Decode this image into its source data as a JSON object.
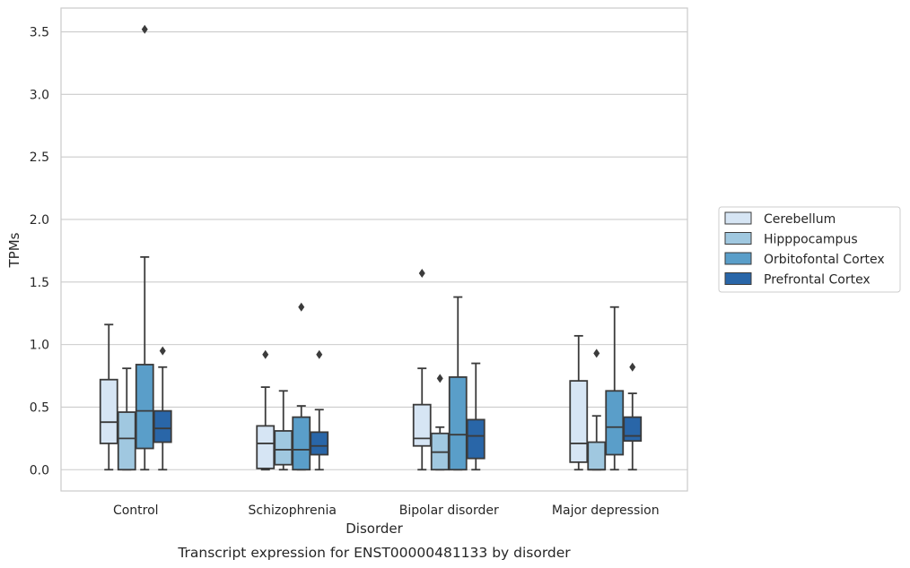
{
  "chart_data": {
    "type": "box",
    "title": "",
    "caption": "Transcript expression for ENST00000481133 by disorder",
    "xlabel": "Disorder",
    "ylabel": "TPMs",
    "ylim": [
      -0.17,
      3.69
    ],
    "yticks": [
      0.0,
      0.5,
      1.0,
      1.5,
      2.0,
      2.5,
      3.0,
      3.5
    ],
    "ytick_labels": [
      "0.0",
      "0.5",
      "1.0",
      "1.5",
      "2.0",
      "2.5",
      "3.0",
      "3.5"
    ],
    "grid": "horizontal",
    "legend_position": "right",
    "categories": [
      "Control",
      "Schizophrenia",
      "Bipolar disorder",
      "Major depression"
    ],
    "series": [
      {
        "name": "Cerebellum",
        "color": "#d6e5f4",
        "boxes": [
          {
            "whisker_low": 0.0,
            "q1": 0.21,
            "median": 0.38,
            "q3": 0.72,
            "whisker_high": 1.16,
            "outliers": []
          },
          {
            "whisker_low": 0.0,
            "q1": 0.01,
            "median": 0.21,
            "q3": 0.35,
            "whisker_high": 0.66,
            "outliers": [
              0.92
            ]
          },
          {
            "whisker_low": 0.0,
            "q1": 0.19,
            "median": 0.25,
            "q3": 0.52,
            "whisker_high": 0.81,
            "outliers": [
              1.57
            ]
          },
          {
            "whisker_low": 0.0,
            "q1": 0.06,
            "median": 0.21,
            "q3": 0.71,
            "whisker_high": 1.07,
            "outliers": []
          }
        ]
      },
      {
        "name": "Hipppocampus",
        "color": "#a0c8e0",
        "boxes": [
          {
            "whisker_low": 0.0,
            "q1": 0.0,
            "median": 0.25,
            "q3": 0.46,
            "whisker_high": 0.81,
            "outliers": []
          },
          {
            "whisker_low": 0.0,
            "q1": 0.04,
            "median": 0.16,
            "q3": 0.31,
            "whisker_high": 0.63,
            "outliers": []
          },
          {
            "whisker_low": 0.0,
            "q1": 0.0,
            "median": 0.14,
            "q3": 0.29,
            "whisker_high": 0.34,
            "outliers": [
              0.73
            ]
          },
          {
            "whisker_low": 0.0,
            "q1": 0.0,
            "median": 0.0,
            "q3": 0.22,
            "whisker_high": 0.43,
            "outliers": [
              0.93
            ]
          }
        ]
      },
      {
        "name": "Orbitofontal Cortex",
        "color": "#5a9ec9",
        "boxes": [
          {
            "whisker_low": 0.0,
            "q1": 0.17,
            "median": 0.47,
            "q3": 0.84,
            "whisker_high": 1.7,
            "outliers": [
              3.52
            ]
          },
          {
            "whisker_low": 0.0,
            "q1": 0.0,
            "median": 0.16,
            "q3": 0.42,
            "whisker_high": 0.51,
            "outliers": [
              1.3
            ]
          },
          {
            "whisker_low": 0.0,
            "q1": 0.0,
            "median": 0.28,
            "q3": 0.74,
            "whisker_high": 1.38,
            "outliers": []
          },
          {
            "whisker_low": 0.0,
            "q1": 0.12,
            "median": 0.34,
            "q3": 0.63,
            "whisker_high": 1.3,
            "outliers": []
          }
        ]
      },
      {
        "name": "Prefrontal Cortex",
        "color": "#2966a8",
        "boxes": [
          {
            "whisker_low": 0.0,
            "q1": 0.22,
            "median": 0.33,
            "q3": 0.47,
            "whisker_high": 0.82,
            "outliers": [
              0.95
            ]
          },
          {
            "whisker_low": 0.0,
            "q1": 0.12,
            "median": 0.19,
            "q3": 0.3,
            "whisker_high": 0.48,
            "outliers": [
              0.92
            ]
          },
          {
            "whisker_low": 0.0,
            "q1": 0.09,
            "median": 0.27,
            "q3": 0.4,
            "whisker_high": 0.85,
            "outliers": []
          },
          {
            "whisker_low": 0.0,
            "q1": 0.23,
            "median": 0.27,
            "q3": 0.42,
            "whisker_high": 0.61,
            "outliers": [
              0.82
            ]
          }
        ]
      }
    ]
  }
}
